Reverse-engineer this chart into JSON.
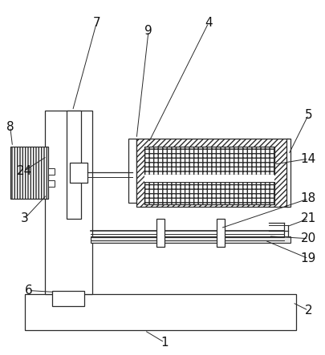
{
  "bg_color": "#ffffff",
  "line_color": "#2a2a2a",
  "figsize": [
    4.06,
    4.43
  ],
  "dpi": 100,
  "lw": 0.9
}
